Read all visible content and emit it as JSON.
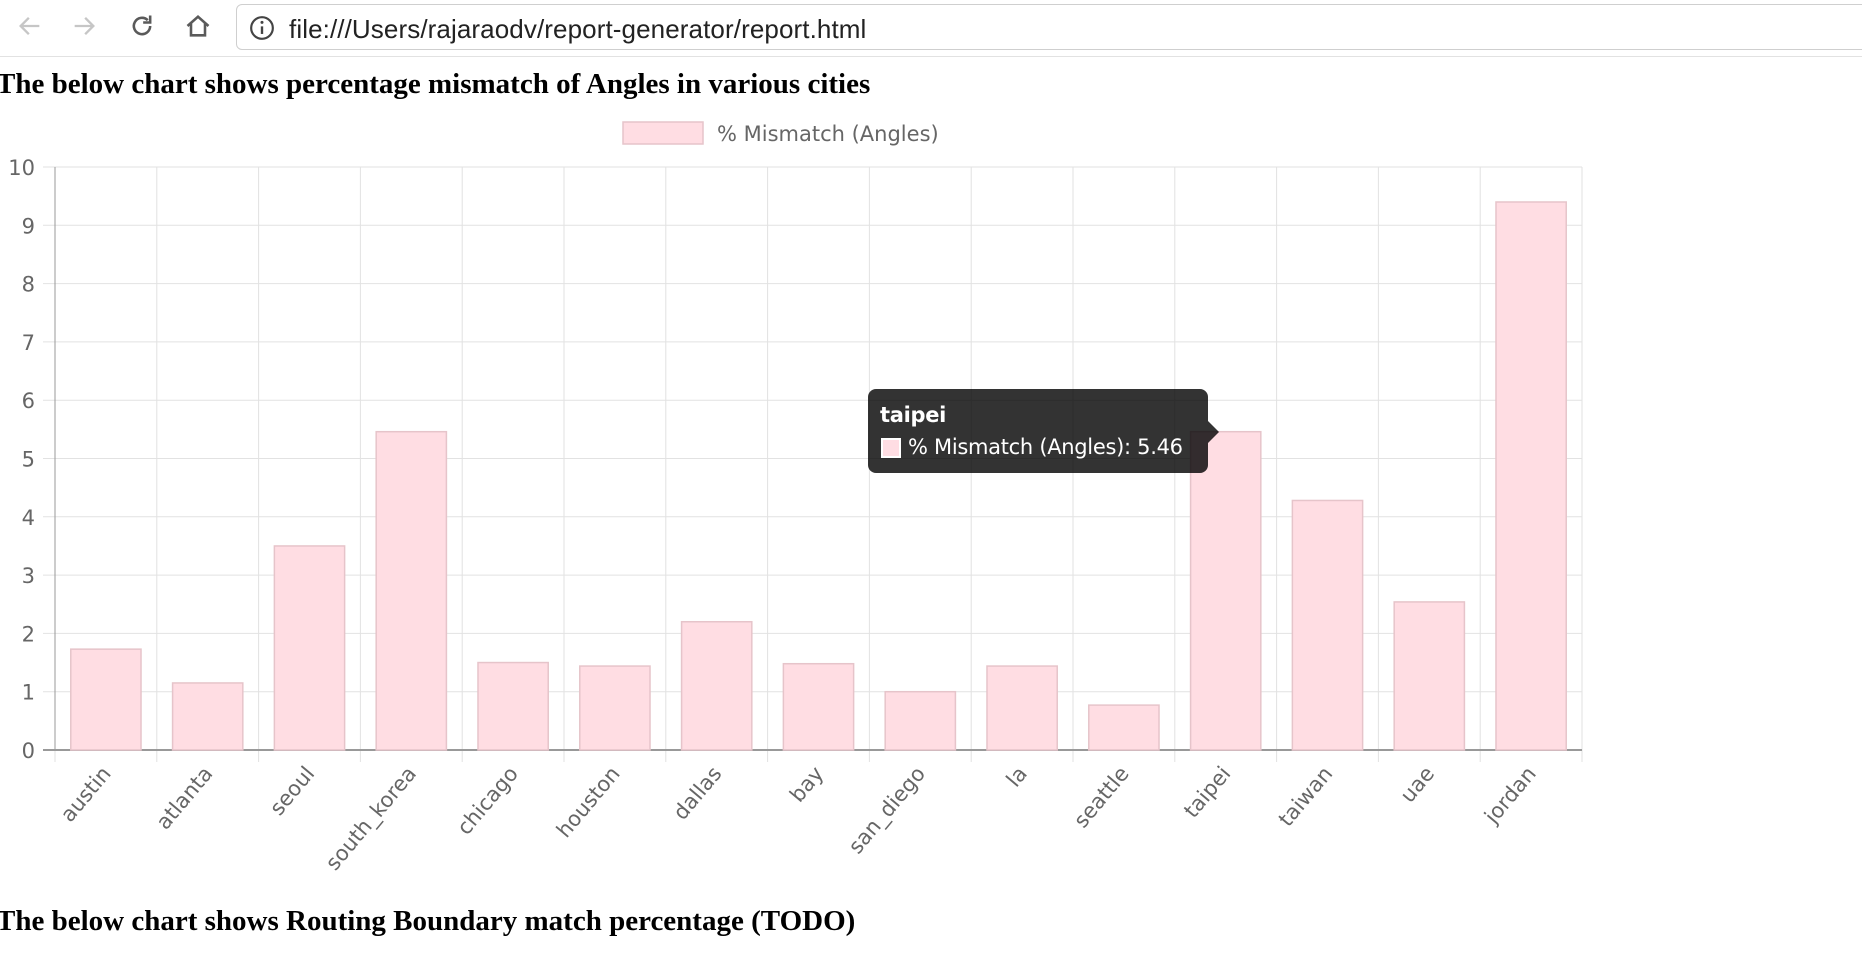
{
  "browser": {
    "url": "file:///Users/rajaraodv/report-generator/report.html"
  },
  "page": {
    "heading1": "The below chart shows percentage mismatch of Angles in various cities",
    "heading2": "The below chart shows Routing Boundary match percentage (TODO)"
  },
  "tooltip": {
    "title": "taipei",
    "label": "% Mismatch (Angles): 5.46"
  },
  "colors": {
    "bar_fill": "#ffdde3",
    "bar_border": "#e6c4ca",
    "grid": "#e2e2e2",
    "text": "#666666"
  },
  "chart_data": {
    "type": "bar",
    "categories": [
      "austin",
      "atlanta",
      "seoul",
      "south_korea",
      "chicago",
      "houston",
      "dallas",
      "bay",
      "san_diego",
      "la",
      "seattle",
      "taipei",
      "taiwan",
      "uae",
      "jordan"
    ],
    "series": [
      {
        "name": "% Mismatch (Angles)",
        "values": [
          1.73,
          1.15,
          3.5,
          5.46,
          1.5,
          1.44,
          2.2,
          1.48,
          1.0,
          1.44,
          0.77,
          5.46,
          4.28,
          2.54,
          9.4
        ]
      }
    ],
    "yticks": [
      "0",
      "1",
      "2",
      "3",
      "4",
      "5",
      "6",
      "7",
      "8",
      "9",
      "10"
    ],
    "ylim": [
      0,
      10
    ],
    "grid": true,
    "legend_position": "top"
  }
}
